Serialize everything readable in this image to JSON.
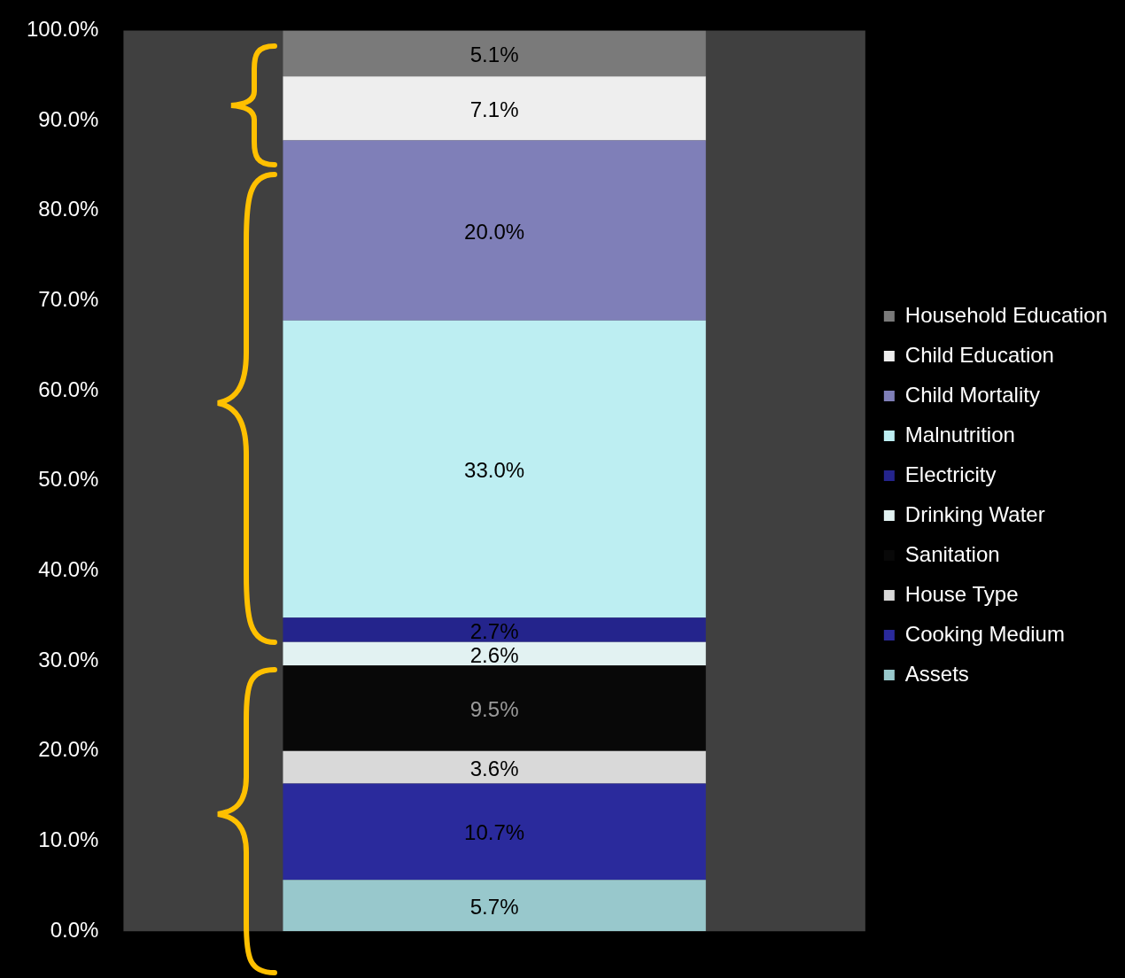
{
  "chart_data": {
    "type": "bar",
    "stacked": true,
    "categories": [
      null
    ],
    "series": [
      {
        "name": "Assets",
        "color": "#98c8cc",
        "values": [
          5.7
        ]
      },
      {
        "name": "Cooking Medium",
        "color": "#2a2a9c",
        "values": [
          10.7
        ]
      },
      {
        "name": "House Type",
        "color": "#d9d9d9",
        "values": [
          3.6
        ]
      },
      {
        "name": "Sanitation",
        "color": "#080808",
        "values": [
          9.5
        ]
      },
      {
        "name": "Drinking Water",
        "color": "#e2f2f2",
        "values": [
          2.6
        ]
      },
      {
        "name": "Electricity",
        "color": "#24248c",
        "values": [
          2.7
        ]
      },
      {
        "name": "Malnutrition",
        "color": "#bdeef2",
        "values": [
          33.0
        ]
      },
      {
        "name": "Child Mortality",
        "color": "#7f7fb8",
        "values": [
          20.0
        ]
      },
      {
        "name": "Child Education",
        "color": "#eeeeee",
        "values": [
          7.1
        ]
      },
      {
        "name": "Household Education",
        "color": "#7a7a7a",
        "values": [
          5.1
        ]
      }
    ],
    "value_labels": [
      "5.7%",
      "10.7%",
      "3.6%",
      "9.5%",
      "2.6%",
      "2.7%",
      "33.0%",
      "20.0%",
      "7.1%",
      "5.1%"
    ],
    "ylim": [
      0,
      100
    ],
    "yticks": [
      {
        "value": 0,
        "label": "0.0%"
      },
      {
        "value": 10,
        "label": "10.0%"
      },
      {
        "value": 20,
        "label": "20.0%"
      },
      {
        "value": 30,
        "label": "30.0%"
      },
      {
        "value": 40,
        "label": "40.0%"
      },
      {
        "value": 50,
        "label": "50.0%"
      },
      {
        "value": 60,
        "label": "60.0%"
      },
      {
        "value": 70,
        "label": "70.0%"
      },
      {
        "value": 80,
        "label": "80.0%"
      },
      {
        "value": 90,
        "label": "90.0%"
      },
      {
        "value": 100,
        "label": "100.0%"
      }
    ],
    "grid": false,
    "legend": "right"
  }
}
